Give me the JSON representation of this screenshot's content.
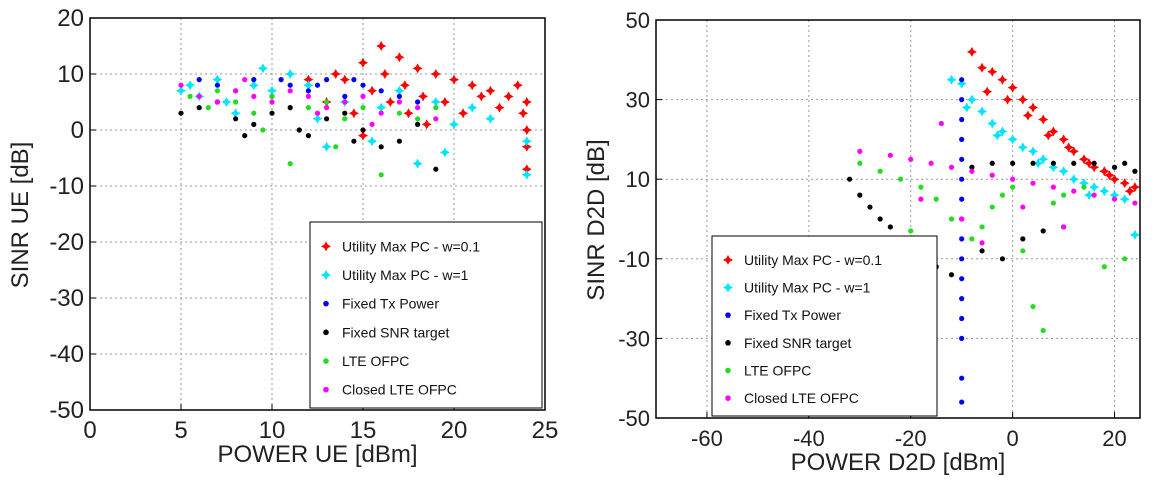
{
  "chart_data": [
    {
      "type": "scatter",
      "title": "",
      "xlabel": "POWER UE [dBm]",
      "ylabel": "SINR UE [dB]",
      "xlim": [
        0,
        25
      ],
      "ylim": [
        -50,
        20
      ],
      "xticks": [
        0,
        5,
        10,
        15,
        20,
        25
      ],
      "yticks": [
        20,
        10,
        0,
        -10,
        -20,
        -30,
        -40,
        -50
      ],
      "grid": true,
      "legend_position": "bottom-right",
      "series": [
        {
          "name": "Utility Max PC - w=0.1",
          "marker": "star",
          "color": "#ff0000",
          "points": [
            [
              13,
              5
            ],
            [
              14,
              9
            ],
            [
              14.5,
              3
            ],
            [
              15,
              12
            ],
            [
              15.5,
              7
            ],
            [
              16,
              15
            ],
            [
              16.2,
              10
            ],
            [
              16.5,
              5
            ],
            [
              17,
              13
            ],
            [
              17.3,
              8
            ],
            [
              17.5,
              3
            ],
            [
              18,
              11
            ],
            [
              18.3,
              6
            ],
            [
              18.5,
              1
            ],
            [
              19,
              10
            ],
            [
              19.5,
              5
            ],
            [
              20,
              9
            ],
            [
              20.5,
              3
            ],
            [
              21,
              8
            ],
            [
              21.5,
              6
            ],
            [
              22,
              7
            ],
            [
              22.5,
              4
            ],
            [
              23,
              6
            ],
            [
              23.5,
              8
            ],
            [
              23.8,
              3
            ],
            [
              24,
              5
            ],
            [
              24,
              0
            ],
            [
              24,
              -3
            ],
            [
              24,
              -7
            ],
            [
              15,
              -1
            ],
            [
              12,
              9
            ],
            [
              13.5,
              10
            ]
          ]
        },
        {
          "name": "Utility Max PC - w=1",
          "marker": "star",
          "color": "#00e5ff",
          "points": [
            [
              5,
              7
            ],
            [
              5.5,
              8
            ],
            [
              6,
              6
            ],
            [
              7,
              9
            ],
            [
              7.5,
              5
            ],
            [
              8,
              3
            ],
            [
              9,
              8
            ],
            [
              9.5,
              11
            ],
            [
              10,
              7
            ],
            [
              11,
              10
            ],
            [
              12,
              8
            ],
            [
              13,
              -3
            ],
            [
              14,
              5
            ],
            [
              15.5,
              -2
            ],
            [
              16,
              4
            ],
            [
              17,
              7
            ],
            [
              18,
              -6
            ],
            [
              19,
              5
            ],
            [
              20,
              1
            ],
            [
              21,
              4
            ],
            [
              22,
              2
            ],
            [
              24,
              -2
            ],
            [
              24,
              -8
            ],
            [
              19.5,
              -4
            ],
            [
              12.5,
              2
            ]
          ]
        },
        {
          "name": "Fixed Tx Power",
          "marker": "dot",
          "color": "#0000ff",
          "points": [
            [
              6,
              9
            ],
            [
              7,
              8
            ],
            [
              8,
              7
            ],
            [
              9,
              9
            ],
            [
              10,
              6
            ],
            [
              11,
              8
            ],
            [
              12,
              7
            ],
            [
              13,
              9
            ],
            [
              14,
              6
            ],
            [
              15,
              8
            ],
            [
              16,
              7
            ],
            [
              17,
              6
            ],
            [
              18,
              5
            ],
            [
              10.5,
              9
            ],
            [
              12.5,
              8
            ],
            [
              14.5,
              9
            ]
          ]
        },
        {
          "name": "Fixed SNR target",
          "marker": "dot",
          "color": "#000000",
          "points": [
            [
              5,
              3
            ],
            [
              6,
              4
            ],
            [
              7,
              5
            ],
            [
              8,
              2
            ],
            [
              9,
              1
            ],
            [
              10,
              3
            ],
            [
              11,
              4
            ],
            [
              12,
              -1
            ],
            [
              13,
              2
            ],
            [
              14,
              3
            ],
            [
              15,
              0
            ],
            [
              16,
              -3
            ],
            [
              17,
              -2
            ],
            [
              18,
              1
            ],
            [
              19,
              -7
            ],
            [
              8.5,
              -1
            ],
            [
              11.5,
              0
            ],
            [
              14.5,
              -2
            ]
          ]
        },
        {
          "name": "LTE OFPC",
          "marker": "dot",
          "color": "#22dd22",
          "points": [
            [
              5.5,
              6
            ],
            [
              6.5,
              4
            ],
            [
              7,
              7
            ],
            [
              8,
              5
            ],
            [
              9,
              3
            ],
            [
              10,
              6
            ],
            [
              11,
              -6
            ],
            [
              12,
              4
            ],
            [
              13,
              5
            ],
            [
              14,
              2
            ],
            [
              15,
              4
            ],
            [
              16,
              -8
            ],
            [
              17,
              3
            ],
            [
              18,
              2
            ],
            [
              19,
              4
            ],
            [
              9.5,
              0
            ],
            [
              13.5,
              -3
            ]
          ]
        },
        {
          "name": "Closed LTE OFPC",
          "marker": "dot",
          "color": "#ff00ff",
          "points": [
            [
              5,
              8
            ],
            [
              6,
              6
            ],
            [
              7,
              5
            ],
            [
              8,
              7
            ],
            [
              9,
              6
            ],
            [
              10,
              5
            ],
            [
              11,
              7
            ],
            [
              12,
              6
            ],
            [
              13,
              4
            ],
            [
              14,
              5
            ],
            [
              15,
              6
            ],
            [
              16,
              3
            ],
            [
              17,
              5
            ],
            [
              18,
              4
            ],
            [
              19,
              2
            ],
            [
              8.5,
              9
            ],
            [
              12.5,
              3
            ],
            [
              15.5,
              1
            ]
          ]
        }
      ]
    },
    {
      "type": "scatter",
      "title": "",
      "xlabel": "POWER D2D [dBm]",
      "ylabel": "SINR D2D [dB]",
      "xlim": [
        -70,
        25
      ],
      "ylim": [
        -50,
        50
      ],
      "xticks": [
        -60,
        -40,
        -20,
        0,
        20
      ],
      "yticks": [
        50,
        30,
        10,
        -10,
        -30,
        -50
      ],
      "grid": true,
      "legend_position": "bottom-left",
      "series": [
        {
          "name": "Utility Max PC - w=0.1",
          "marker": "star",
          "color": "#ff0000",
          "points": [
            [
              -8,
              42
            ],
            [
              -6,
              38
            ],
            [
              -4,
              37
            ],
            [
              -2,
              35
            ],
            [
              0,
              33
            ],
            [
              2,
              30
            ],
            [
              4,
              28
            ],
            [
              6,
              25
            ],
            [
              8,
              22
            ],
            [
              10,
              20
            ],
            [
              12,
              17
            ],
            [
              14,
              15
            ],
            [
              16,
              13
            ],
            [
              18,
              12
            ],
            [
              20,
              10
            ],
            [
              22,
              9
            ],
            [
              24,
              8
            ],
            [
              -5,
              32
            ],
            [
              -1,
              30
            ],
            [
              3,
              26
            ],
            [
              7,
              21
            ],
            [
              11,
              18
            ],
            [
              15,
              14
            ],
            [
              19,
              11
            ],
            [
              23,
              7
            ]
          ]
        },
        {
          "name": "Utility Max PC - w=1",
          "marker": "star",
          "color": "#00e5ff",
          "points": [
            [
              -12,
              35
            ],
            [
              -10,
              34
            ],
            [
              -8,
              30
            ],
            [
              -6,
              27
            ],
            [
              -4,
              24
            ],
            [
              -2,
              22
            ],
            [
              0,
              20
            ],
            [
              2,
              18
            ],
            [
              4,
              17
            ],
            [
              6,
              15
            ],
            [
              8,
              13
            ],
            [
              10,
              12
            ],
            [
              12,
              10
            ],
            [
              14,
              9
            ],
            [
              16,
              8
            ],
            [
              18,
              7
            ],
            [
              20,
              6
            ],
            [
              22,
              5
            ],
            [
              24,
              -4
            ],
            [
              -9,
              28
            ],
            [
              -3,
              21
            ],
            [
              5,
              14
            ],
            [
              15,
              6
            ]
          ]
        },
        {
          "name": "Fixed Tx Power",
          "marker": "dot",
          "color": "#0000ff",
          "points": [
            [
              -10,
              35
            ],
            [
              -10,
              30
            ],
            [
              -10,
              25
            ],
            [
              -10,
              20
            ],
            [
              -10,
              15
            ],
            [
              -10,
              10
            ],
            [
              -10,
              5
            ],
            [
              -10,
              0
            ],
            [
              -10,
              -5
            ],
            [
              -10,
              -10
            ],
            [
              -10,
              -15
            ],
            [
              -10,
              -20
            ],
            [
              -10,
              -25
            ],
            [
              -10,
              -30
            ],
            [
              -10,
              -40
            ],
            [
              -10,
              -46
            ]
          ]
        },
        {
          "name": "Fixed SNR target",
          "marker": "dot",
          "color": "#000000",
          "points": [
            [
              -32,
              10
            ],
            [
              -30,
              6
            ],
            [
              -28,
              3
            ],
            [
              -26,
              0
            ],
            [
              -24,
              -2
            ],
            [
              -22,
              -5
            ],
            [
              -20,
              -8
            ],
            [
              -18,
              -10
            ],
            [
              -15,
              -12
            ],
            [
              -12,
              -14
            ],
            [
              -8,
              13
            ],
            [
              -4,
              14
            ],
            [
              0,
              14
            ],
            [
              4,
              14
            ],
            [
              8,
              14
            ],
            [
              12,
              14
            ],
            [
              16,
              14
            ],
            [
              20,
              13
            ],
            [
              22,
              14
            ],
            [
              24,
              12
            ],
            [
              -6,
              -8
            ],
            [
              -2,
              -10
            ],
            [
              2,
              -5
            ],
            [
              6,
              -3
            ],
            [
              10,
              -2
            ]
          ]
        },
        {
          "name": "LTE OFPC",
          "marker": "dot",
          "color": "#22dd22",
          "points": [
            [
              -30,
              14
            ],
            [
              -26,
              12
            ],
            [
              -22,
              10
            ],
            [
              -18,
              8
            ],
            [
              -15,
              5
            ],
            [
              -12,
              0
            ],
            [
              -8,
              -5
            ],
            [
              -6,
              -2
            ],
            [
              -4,
              3
            ],
            [
              -2,
              6
            ],
            [
              0,
              8
            ],
            [
              2,
              -8
            ],
            [
              4,
              -22
            ],
            [
              6,
              -28
            ],
            [
              8,
              4
            ],
            [
              10,
              6
            ],
            [
              14,
              8
            ],
            [
              18,
              -12
            ],
            [
              22,
              -10
            ],
            [
              -20,
              -3
            ],
            [
              -16,
              -6
            ]
          ]
        },
        {
          "name": "Closed LTE OFPC",
          "marker": "dot",
          "color": "#ff00ff",
          "points": [
            [
              -30,
              17
            ],
            [
              -24,
              16
            ],
            [
              -20,
              15
            ],
            [
              -16,
              14
            ],
            [
              -14,
              24
            ],
            [
              -12,
              13
            ],
            [
              -8,
              12
            ],
            [
              -4,
              11
            ],
            [
              0,
              10
            ],
            [
              4,
              9
            ],
            [
              8,
              8
            ],
            [
              12,
              7
            ],
            [
              16,
              6
            ],
            [
              20,
              5
            ],
            [
              24,
              4
            ],
            [
              -18,
              5
            ],
            [
              -10,
              0
            ],
            [
              -6,
              -6
            ],
            [
              2,
              3
            ],
            [
              10,
              -2
            ]
          ]
        }
      ]
    }
  ]
}
